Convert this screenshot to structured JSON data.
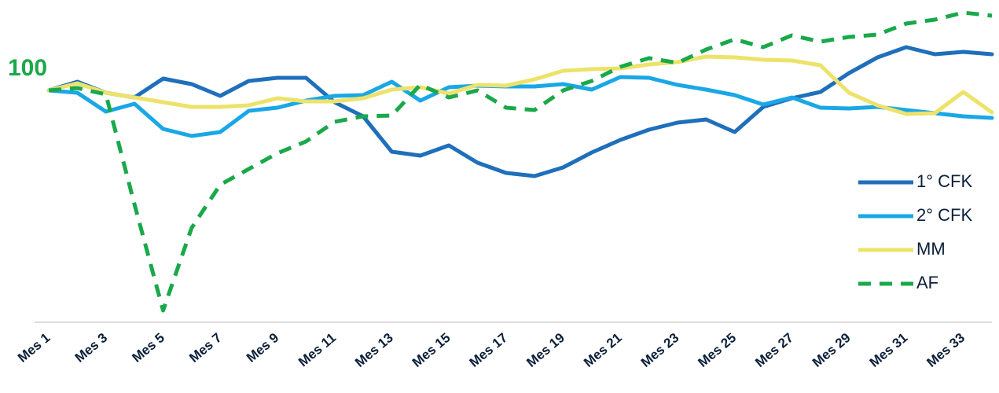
{
  "chart_data": {
    "type": "line",
    "annotation": "100",
    "categories": [
      "Mes 1",
      null,
      "Mes 3",
      null,
      "Mes 5",
      null,
      "Mes 7",
      null,
      "Mes 9",
      null,
      "Mes 11",
      null,
      "Mes 13",
      null,
      "Mes 15",
      null,
      "Mes 17",
      null,
      "Mes 19",
      null,
      "Mes 21",
      null,
      "Mes 23",
      null,
      "Mes 25",
      null,
      "Mes 27",
      null,
      "Mes 29",
      null,
      "Mes 31",
      null,
      "Mes 33",
      null
    ],
    "ylim": [
      41,
      121
    ],
    "series": [
      {
        "name": "1° CFK",
        "color": "#1f6fba",
        "dashed": false,
        "values": [
          100,
          102.2,
          99.4,
          98.2,
          103,
          101.6,
          98.6,
          102.4,
          103.2,
          103.2,
          97,
          93.4,
          84.4,
          83.4,
          86,
          81.6,
          79,
          78.2,
          80.4,
          84.2,
          87.4,
          90,
          91.8,
          92.6,
          89.4,
          95.8,
          98,
          99.6,
          104.4,
          108.4,
          111,
          109.2,
          109.8,
          109.2
        ]
      },
      {
        "name": "2° CFK",
        "color": "#1aa7e6",
        "dashed": false,
        "values": [
          100,
          99.4,
          94.6,
          96.6,
          90.2,
          88.4,
          89.4,
          94.8,
          95.6,
          97.4,
          98.6,
          98.8,
          102.2,
          97.4,
          100.8,
          101.2,
          101,
          101,
          101.6,
          100.2,
          103.4,
          103.2,
          101.4,
          100.2,
          98.8,
          96.4,
          98.2,
          95.6,
          95.4,
          95.8,
          95,
          94.2,
          93.4,
          93
        ]
      },
      {
        "name": "MM",
        "color": "#ede26a",
        "dashed": false,
        "values": [
          100,
          101.8,
          99.4,
          98.2,
          97,
          95.8,
          95.8,
          96.2,
          98,
          97.2,
          97.2,
          98,
          100.2,
          100.8,
          99.2,
          101.4,
          101.2,
          102.8,
          105,
          105.4,
          105.6,
          106.6,
          107.2,
          108.6,
          108.4,
          107.8,
          107.6,
          106.4,
          99.4,
          96.2,
          94,
          94.2,
          99.6,
          94.4
        ]
      },
      {
        "name": "AF",
        "color": "#19a84a",
        "dashed": true,
        "values": [
          100,
          100.6,
          99,
          71,
          44,
          65,
          76,
          80,
          84,
          87,
          92,
          93.4,
          93.6,
          101.4,
          98.2,
          100,
          95.6,
          95,
          100,
          102.4,
          106,
          108.2,
          107,
          110.4,
          113,
          111,
          114,
          112.4,
          113.6,
          114.2,
          117,
          118,
          119.8,
          119
        ]
      }
    ]
  }
}
